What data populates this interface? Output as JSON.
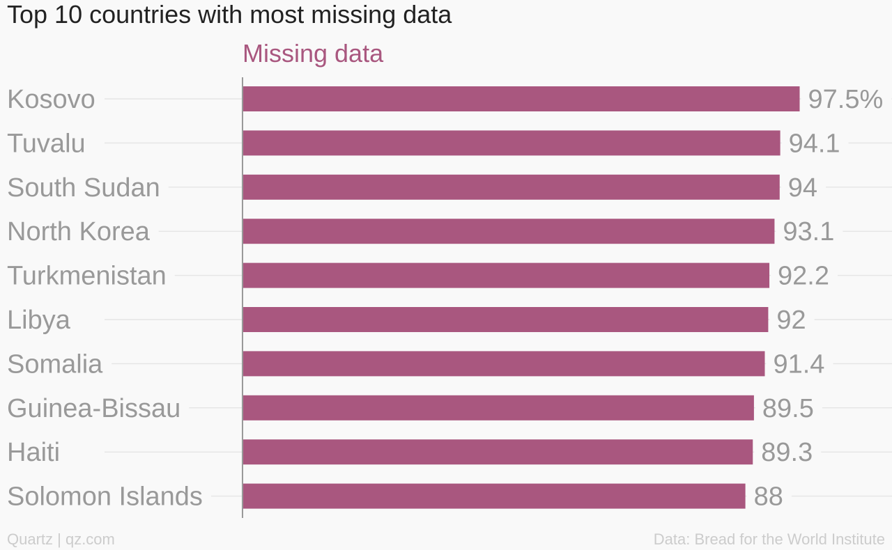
{
  "chart_data": {
    "type": "bar",
    "orientation": "horizontal",
    "title": "Top 10 countries with most missing data",
    "series": [
      {
        "name": "Missing data",
        "values": [
          97.5,
          94.1,
          94,
          93.1,
          92.2,
          92,
          91.4,
          89.5,
          89.3,
          88
        ],
        "labels": [
          "97.5%",
          "94.1",
          "94",
          "93.1",
          "92.2",
          "92",
          "91.4",
          "89.5",
          "89.3",
          "88"
        ]
      }
    ],
    "categories": [
      "Kosovo",
      "Tuvalu",
      "South Sudan",
      "North Korea",
      "Turkmenistan",
      "Libya",
      "Somalia",
      "Guinea-Bissau",
      "Haiti",
      "Solomon Islands"
    ],
    "xlim": [
      0,
      100
    ],
    "grid": true,
    "bar_color": "#a9577f"
  },
  "footer": {
    "credit": "Quartz | qz.com",
    "source": "Data: Bread for the World Institute"
  }
}
